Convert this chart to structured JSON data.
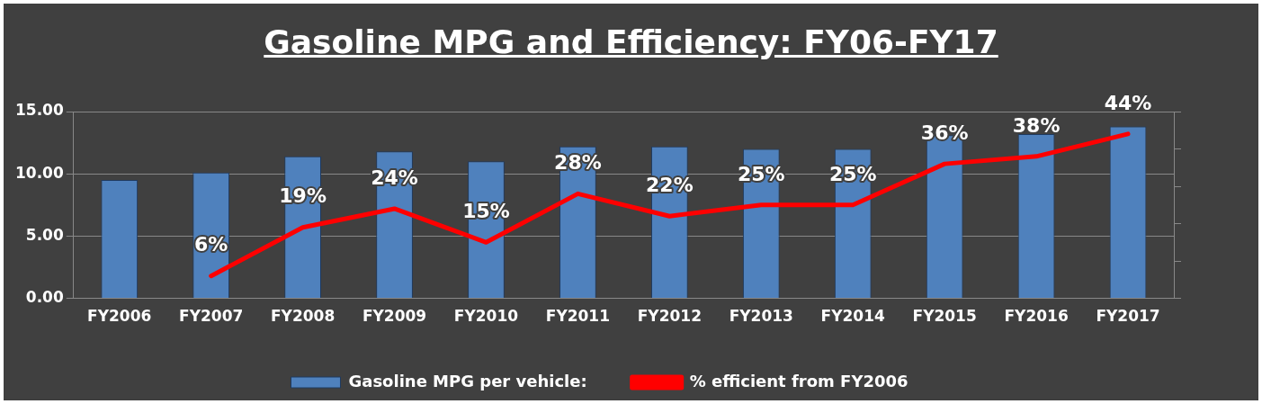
{
  "chart_data": {
    "type": "bar",
    "title": "Gasoline MPG and Efficiency:  FY06-FY17",
    "categories": [
      "FY2006",
      "FY2007",
      "FY2008",
      "FY2009",
      "FY2010",
      "FY2011",
      "FY2012",
      "FY2013",
      "FY2014",
      "FY2015",
      "FY2016",
      "FY2017"
    ],
    "series": [
      {
        "name": "Gasoline MPG per vehicle:",
        "color": "#4f81bd",
        "values": [
          9.5,
          10.1,
          11.4,
          11.8,
          11.0,
          12.2,
          12.2,
          12.0,
          12.0,
          13.1,
          13.2,
          13.8
        ]
      },
      {
        "name": "% efficient from FY2006",
        "type": "line",
        "axis": "y2",
        "color": "#ff0000",
        "values": [
          null,
          6,
          19,
          24,
          15,
          28,
          22,
          25,
          25,
          36,
          38,
          44
        ],
        "value_labels": [
          null,
          "6%",
          "19%",
          "24%",
          "15%",
          "28%",
          "22%",
          "25%",
          "25%",
          "36%",
          "38%",
          "44%"
        ]
      }
    ],
    "ylim": [
      0,
      15
    ],
    "yticks": [
      {
        "value": 0,
        "label": "0.00"
      },
      {
        "value": 5,
        "label": "5.00"
      },
      {
        "value": 10,
        "label": "10.00"
      },
      {
        "value": 15,
        "label": "15.00"
      }
    ],
    "y2lim": [
      0,
      50
    ],
    "y2ticks": [
      {
        "value": 0,
        "label": null
      },
      {
        "value": 10,
        "label": null
      },
      {
        "value": 20,
        "label": null
      },
      {
        "value": 30,
        "label": null
      },
      {
        "value": 40,
        "label": null
      },
      {
        "value": 50,
        "label": null
      }
    ],
    "grid": "y",
    "legend": "bottom",
    "marker": "none",
    "line_style": "solid"
  }
}
